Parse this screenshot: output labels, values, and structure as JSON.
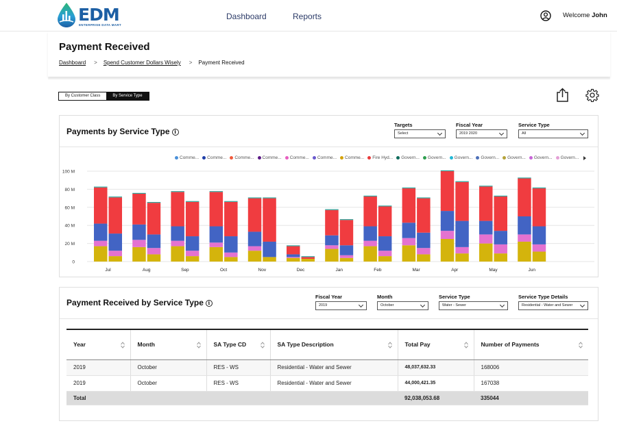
{
  "header": {
    "logo_text": "EDM",
    "logo_sub": "ENTERPRISE DATA MART",
    "nav": [
      "Dashboard",
      "Reports"
    ],
    "welcome_prefix": "Welcome",
    "user_name": "John"
  },
  "page": {
    "title": "Payment Received",
    "breadcrumb": [
      "Dashboard",
      "Spend Customer Dollars Wisely",
      "Payment Received"
    ]
  },
  "toggle": {
    "options": [
      "By Customer Class",
      "By Service Type"
    ],
    "active": "By Service Type"
  },
  "chart_panel": {
    "title": "Payments by Service Type",
    "filters": [
      {
        "label": "Targets",
        "value": "Select"
      },
      {
        "label": "Fiscal Year",
        "value": "2019  2020"
      },
      {
        "label": "Service Type",
        "value": "All"
      }
    ],
    "legend": [
      {
        "name": "Comme...",
        "color": "#4a90d9"
      },
      {
        "name": "Comme...",
        "color": "#1f3fa8"
      },
      {
        "name": "Comme...",
        "color": "#f05a3c"
      },
      {
        "name": "Comme...",
        "color": "#5b1a86"
      },
      {
        "name": "Comme...",
        "color": "#e75fc0"
      },
      {
        "name": "Comme...",
        "color": "#6a5acd"
      },
      {
        "name": "Comme...",
        "color": "#d4a20a"
      },
      {
        "name": "Fire Hyd...",
        "color": "#e83a3a"
      },
      {
        "name": "Govern...",
        "color": "#0f6b5c"
      },
      {
        "name": "Govern...",
        "color": "#2e9e4f"
      },
      {
        "name": "Govern...",
        "color": "#22b8d6"
      },
      {
        "name": "Govern...",
        "color": "#4d6fb8"
      },
      {
        "name": "Govern...",
        "color": "#b5a33a"
      },
      {
        "name": "Govern...",
        "color": "#c865d8"
      },
      {
        "name": "Govern...",
        "color": "#e4a0d6"
      }
    ]
  },
  "chart_data": {
    "type": "bar",
    "stacked": true,
    "categories": [
      "Jul",
      "Aug",
      "Sep",
      "Oct",
      "Nov",
      "Dec",
      "Jan",
      "Feb",
      "Mar",
      "Apr",
      "May",
      "Jun"
    ],
    "ylim": [
      0,
      100
    ],
    "yticks": [
      "0",
      "20 M",
      "40 M",
      "60 M",
      "80 M",
      "100 M"
    ],
    "grid": true,
    "bars": [
      {
        "month": "Jul",
        "segments": [
          17,
          6,
          19,
          40
        ]
      },
      {
        "month": "Jul",
        "segments": [
          6,
          6,
          19,
          40
        ]
      },
      {
        "month": "Aug",
        "segments": [
          16,
          8,
          17,
          34
        ]
      },
      {
        "month": "Aug",
        "segments": [
          8,
          7,
          15,
          35
        ]
      },
      {
        "month": "Sep",
        "segments": [
          17,
          6,
          16,
          38
        ]
      },
      {
        "month": "Sep",
        "segments": [
          6,
          6,
          16,
          38
        ]
      },
      {
        "month": "Oct",
        "segments": [
          16,
          5,
          18,
          38
        ]
      },
      {
        "month": "Oct",
        "segments": [
          5,
          5,
          18,
          38
        ]
      },
      {
        "month": "Nov",
        "segments": [
          12,
          5,
          16,
          37
        ]
      },
      {
        "month": "Nov",
        "segments": [
          5,
          0,
          17,
          48
        ]
      },
      {
        "month": "Dec",
        "segments": [
          4,
          1,
          3,
          9
        ]
      },
      {
        "month": "Dec",
        "segments": [
          3,
          0,
          0,
          2
        ]
      },
      {
        "month": "Jan",
        "segments": [
          14,
          4,
          11,
          28
        ]
      },
      {
        "month": "Jan",
        "segments": [
          4,
          3,
          11,
          28
        ]
      },
      {
        "month": "Feb",
        "segments": [
          17,
          6,
          16,
          33
        ]
      },
      {
        "month": "Feb",
        "segments": [
          6,
          6,
          16,
          33
        ]
      },
      {
        "month": "Mar",
        "segments": [
          18,
          8,
          17,
          38
        ]
      },
      {
        "month": "Mar",
        "segments": [
          8,
          7,
          17,
          38
        ]
      },
      {
        "month": "Apr",
        "segments": [
          25,
          9,
          22,
          44
        ]
      },
      {
        "month": "Apr",
        "segments": [
          9,
          7,
          29,
          43
        ]
      },
      {
        "month": "May",
        "segments": [
          20,
          10,
          15,
          38
        ]
      },
      {
        "month": "May",
        "segments": [
          9,
          10,
          15,
          38
        ]
      },
      {
        "month": "Jun",
        "segments": [
          22,
          8,
          20,
          42
        ]
      },
      {
        "month": "Jun",
        "segments": [
          11,
          8,
          20,
          42
        ]
      }
    ],
    "segment_colors": [
      "#d4b40c",
      "#e472d0",
      "#4264c4",
      "#f03c40"
    ]
  },
  "table_panel": {
    "title": "Payment Received by Service Type",
    "filters": [
      {
        "label": "Fiscal Year",
        "value": "2019"
      },
      {
        "label": "Month",
        "value": "October"
      },
      {
        "label": "Service Type",
        "value": "Water - Sewer"
      },
      {
        "label": "Service Type Details",
        "value": "Residential - Water and Sewer"
      }
    ],
    "columns": [
      "Year",
      "Month",
      "SA Type CD",
      "SA Type Description",
      "Total  Pay",
      "Number of  Payments"
    ],
    "rows": [
      [
        "2019",
        "October",
        "RES - WS",
        "Residential - Water and Sewer",
        "48,037,632.33",
        "168006"
      ],
      [
        "2019",
        "October",
        "RES - WS",
        "Residential - Water and Sewer",
        "44,000,421.35",
        "167038"
      ]
    ],
    "total": {
      "label": "Total",
      "pay": "92,038,053.68",
      "payments": "335044"
    }
  }
}
